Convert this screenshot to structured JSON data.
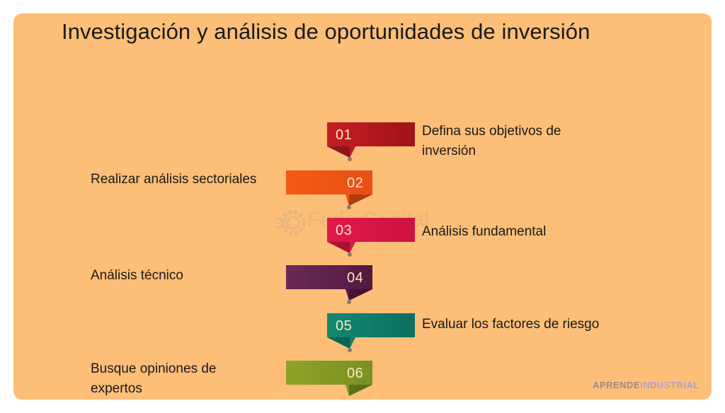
{
  "title": "Investigación y análisis de oportunidades de inversión",
  "steps": [
    {
      "number": "01",
      "text": "Defina sus objetivos de inversión",
      "side": "right",
      "color": "#b0161d"
    },
    {
      "number": "02",
      "text": "Realizar análisis sectoriales",
      "side": "left",
      "color": "#ee5413"
    },
    {
      "number": "03",
      "text": "Análisis fundamental",
      "side": "right",
      "color": "#d81646"
    },
    {
      "number": "04",
      "text": "Análisis técnico",
      "side": "left",
      "color": "#5e214f"
    },
    {
      "number": "05",
      "text": "Evaluar los factores de riesgo",
      "side": "right",
      "color": "#0f7b6c"
    },
    {
      "number": "06",
      "text": "Busque opiniones de expertos",
      "side": "left",
      "color": "#849b25"
    }
  ],
  "watermark": "FederCapital",
  "brand": {
    "part1": "APRENDE",
    "part2": "INDUSTRIAL"
  },
  "colors": {
    "background": "#fdbe78",
    "ribbon_number": "#fde7c3"
  }
}
